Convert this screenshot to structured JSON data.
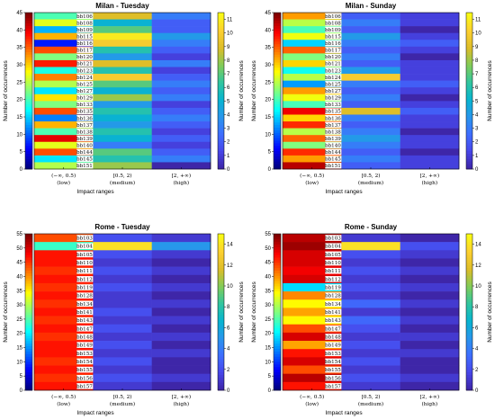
{
  "chart_data": [
    {
      "type": "heatmap",
      "title": "Milan - Tuesday",
      "xlabel": "Impact ranges",
      "ylabel": "Number of occurrences",
      "categories": [
        [
          "(−∞, 0.5)",
          "(low)"
        ],
        [
          "[0.5, 2)",
          "(medium)"
        ],
        [
          "[2, +∞)",
          "(high)"
        ]
      ],
      "yticks": [
        0,
        5,
        10,
        15,
        20,
        25,
        30,
        35,
        40,
        45
      ],
      "ylim": [
        0,
        45
      ],
      "colorbar": {
        "min": 0,
        "max": 11.5,
        "ticks": [
          0,
          1,
          2,
          3,
          4,
          5,
          6,
          7,
          8,
          9,
          10,
          11
        ]
      },
      "leftbar": {
        "min": 25,
        "max": 45
      },
      "rows": [
        "bb106",
        "bb108",
        "bb109",
        "bb115",
        "bb116",
        "bb117",
        "bb120",
        "bb121",
        "bb123",
        "bb124",
        "bb125",
        "bb127",
        "bb129",
        "bb133",
        "bb135",
        "bb136",
        "bb137",
        "bb138",
        "bb139",
        "bb140",
        "bb144",
        "bb145",
        "bb151"
      ],
      "values": [
        [
          34,
          9,
          3
        ],
        [
          37,
          5,
          2
        ],
        [
          31,
          7,
          2
        ],
        [
          39,
          11,
          4
        ],
        [
          28,
          10,
          3
        ],
        [
          41,
          6,
          2
        ],
        [
          35,
          4,
          1
        ],
        [
          42,
          9,
          3
        ],
        [
          33,
          6,
          1
        ],
        [
          40,
          10,
          2
        ],
        [
          36,
          7,
          3
        ],
        [
          32,
          5,
          2
        ],
        [
          38,
          8,
          3
        ],
        [
          35,
          4,
          1
        ],
        [
          41,
          6,
          2
        ],
        [
          30,
          5,
          3
        ],
        [
          39,
          4,
          2
        ],
        [
          34,
          6,
          1
        ],
        [
          43,
          5,
          2
        ],
        [
          37,
          3,
          1
        ],
        [
          41,
          7,
          2
        ],
        [
          32,
          6,
          3
        ],
        [
          36,
          8,
          0
        ]
      ]
    },
    {
      "type": "heatmap",
      "title": "Milan - Sunday",
      "xlabel": "Impact ranges",
      "ylabel": "Number of occurrences",
      "categories": [
        [
          "(−∞, 0.5)",
          "(low)"
        ],
        [
          "[0.5, 2)",
          "(medium)"
        ],
        [
          "[2, +∞)",
          "(high)"
        ]
      ],
      "yticks": [
        0,
        5,
        10,
        15,
        20,
        25,
        30,
        35,
        40,
        45
      ],
      "ylim": [
        0,
        45
      ],
      "colorbar": {
        "min": 0,
        "max": 11.5,
        "ticks": [
          0,
          1,
          2,
          3,
          4,
          5,
          6,
          7,
          8,
          9,
          10,
          11
        ]
      },
      "leftbar": {
        "min": 27,
        "max": 45
      },
      "rows": [
        "bb106",
        "bb108",
        "bb109",
        "bb115",
        "bb116",
        "bb117",
        "bb120",
        "bb121",
        "bb123",
        "bb124",
        "bb125",
        "bb127",
        "bb129",
        "bb133",
        "bb135",
        "bb136",
        "bb137",
        "bb138",
        "bb139",
        "bb140",
        "bb144",
        "bb145",
        "bb151"
      ],
      "values": [
        [
          40,
          2,
          1
        ],
        [
          37,
          3,
          1
        ],
        [
          35,
          2,
          0
        ],
        [
          38,
          4,
          1
        ],
        [
          33,
          3,
          2
        ],
        [
          41,
          2,
          1
        ],
        [
          36,
          3,
          0
        ],
        [
          39,
          2,
          1
        ],
        [
          34,
          4,
          1
        ],
        [
          37,
          10,
          1
        ],
        [
          32,
          3,
          2
        ],
        [
          40,
          2,
          1
        ],
        [
          38,
          3,
          0
        ],
        [
          35,
          2,
          1
        ],
        [
          43,
          9,
          2
        ],
        [
          39,
          3,
          1
        ],
        [
          42,
          2,
          1
        ],
        [
          37,
          3,
          0
        ],
        [
          41,
          4,
          1
        ],
        [
          36,
          3,
          1
        ],
        [
          42,
          2,
          0
        ],
        [
          40,
          3,
          1
        ],
        [
          44,
          2,
          1
        ]
      ]
    },
    {
      "type": "heatmap",
      "title": "Rome - Tuesday",
      "xlabel": "Impact ranges",
      "ylabel": "Number of occurrences",
      "categories": [
        [
          "(−∞, 0.5)",
          "(low)"
        ],
        [
          "[0.5, 2)",
          "(medium)"
        ],
        [
          "[2, +∞)",
          "(high)"
        ]
      ],
      "yticks": [
        0,
        5,
        10,
        15,
        20,
        25,
        30,
        35,
        40,
        45,
        50,
        55
      ],
      "ylim": [
        0,
        55
      ],
      "colorbar": {
        "min": 0,
        "max": 15,
        "ticks": [
          0,
          2,
          4,
          6,
          8,
          10,
          12,
          14
        ]
      },
      "leftbar": {
        "min": 20,
        "max": 55
      },
      "rows": [
        "bb103",
        "bb104",
        "bb105",
        "bb110",
        "bb111",
        "bb112",
        "bb119",
        "bb128",
        "bb134",
        "bb141",
        "bb143",
        "bb147",
        "bb148",
        "bb149",
        "bb153",
        "bb154",
        "bb155",
        "bb156",
        "bb157"
      ],
      "values": [
        [
          48,
          2,
          1
        ],
        [
          35,
          14,
          5
        ],
        [
          50,
          2,
          1
        ],
        [
          50,
          1,
          0
        ],
        [
          49,
          2,
          1
        ],
        [
          50,
          1,
          0
        ],
        [
          49,
          2,
          1
        ],
        [
          50,
          1,
          0
        ],
        [
          49,
          1,
          1
        ],
        [
          50,
          2,
          0
        ],
        [
          49,
          1,
          1
        ],
        [
          50,
          2,
          0
        ],
        [
          49,
          1,
          1
        ],
        [
          50,
          2,
          0
        ],
        [
          50,
          1,
          1
        ],
        [
          49,
          2,
          0
        ],
        [
          50,
          1,
          0
        ],
        [
          49,
          2,
          1
        ],
        [
          50,
          1,
          0
        ]
      ]
    },
    {
      "type": "heatmap",
      "title": "Rome - Sunday",
      "xlabel": "Impact ranges",
      "ylabel": "Number of occurrences",
      "categories": [
        [
          "(−∞, 0.5)",
          "(low)"
        ],
        [
          "[0.5, 2)",
          "(medium)"
        ],
        [
          "[2, +∞)",
          "(high)"
        ]
      ],
      "yticks": [
        0,
        5,
        10,
        15,
        20,
        25,
        30,
        35,
        40,
        45,
        50,
        55
      ],
      "ylim": [
        0,
        55
      ],
      "colorbar": {
        "min": 0,
        "max": 15,
        "ticks": [
          0,
          2,
          4,
          6,
          8,
          10,
          12,
          14
        ]
      },
      "leftbar": {
        "min": 20,
        "max": 55
      },
      "rows": [
        "bb103",
        "bb104",
        "bb105",
        "bb110",
        "bb111",
        "bb112",
        "bb119",
        "bb128",
        "bb134",
        "bb141",
        "bb143",
        "bb147",
        "bb148",
        "bb149",
        "bb153",
        "bb154",
        "bb155",
        "bb156",
        "bb157"
      ],
      "values": [
        [
          53,
          1,
          0
        ],
        [
          54,
          14,
          2
        ],
        [
          52,
          2,
          1
        ],
        [
          52,
          1,
          0
        ],
        [
          51,
          2,
          1
        ],
        [
          52,
          1,
          0
        ],
        [
          32,
          2,
          1
        ],
        [
          46,
          1,
          0
        ],
        [
          42,
          3,
          1
        ],
        [
          45,
          1,
          0
        ],
        [
          42,
          3,
          1
        ],
        [
          48,
          2,
          0
        ],
        [
          52,
          1,
          1
        ],
        [
          45,
          2,
          0
        ],
        [
          50,
          1,
          1
        ],
        [
          52,
          2,
          0
        ],
        [
          48,
          1,
          0
        ],
        [
          53,
          2,
          1
        ],
        [
          50,
          1,
          0
        ]
      ]
    }
  ]
}
